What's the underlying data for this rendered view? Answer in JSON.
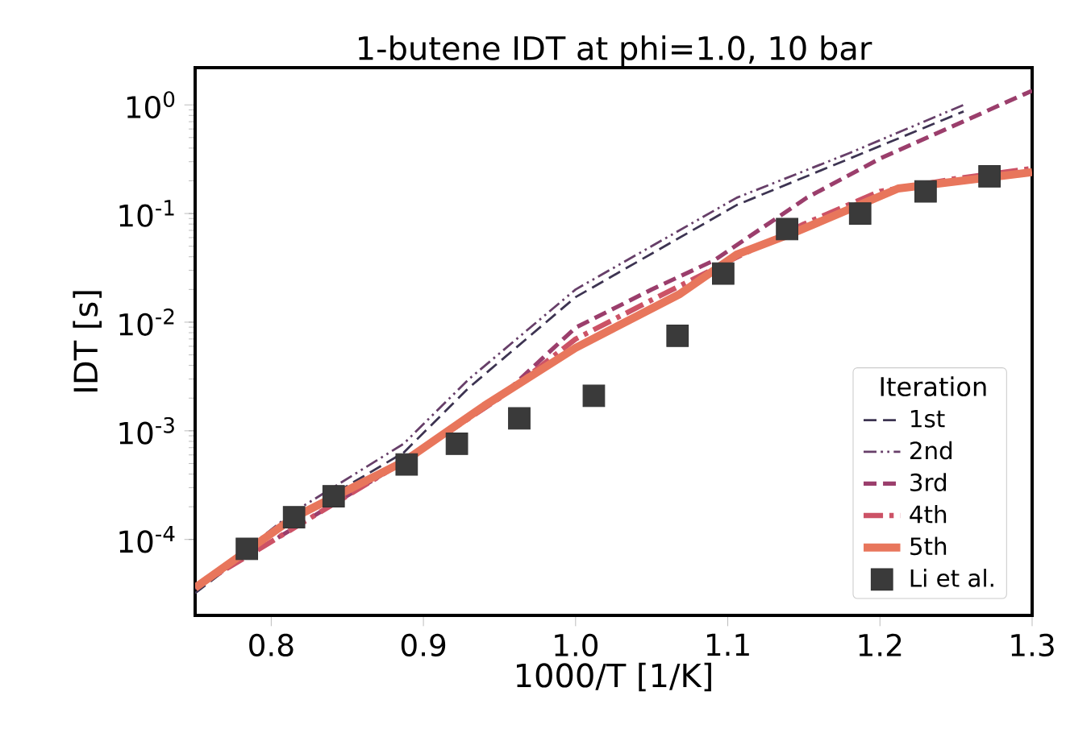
{
  "chart_data": {
    "type": "line",
    "title": "1-butene IDT at phi=1.0, 10 bar",
    "xlabel": "1000/T [1/K]",
    "ylabel": "IDT [s]",
    "legend_title": "Iteration",
    "legend": "bottom right",
    "log": "y",
    "grid": false,
    "xlim": [
      0.75,
      1.3
    ],
    "xticks": [
      0.8,
      0.9,
      {
        "value": 1.0,
        "label": "1.0"
      },
      1.1,
      1.2,
      1.3
    ],
    "ylim": [
      2e-05,
      2.2
    ],
    "yticks": [
      {
        "value": 0.0001,
        "label": "10$^{-4}$"
      },
      {
        "value": 0.001,
        "label": "10$^{-3}$"
      },
      {
        "value": 0.01,
        "label": "10$^{-2}$"
      },
      {
        "value": 0.1,
        "label": "10$^{-1}$"
      },
      {
        "value": 1,
        "label": "10$^{0}$"
      }
    ],
    "series": [
      {
        "name": "1st",
        "color": "#3d3452",
        "line_style": "dashed",
        "x": [
          0.75,
          0.815,
          0.887,
          0.93,
          1.0,
          1.106,
          1.18,
          1.255
        ],
        "values": [
          3.2e-05,
          0.00016,
          0.00063,
          0.0025,
          0.017,
          0.12,
          0.32,
          0.87
        ]
      },
      {
        "name": "2nd",
        "color": "#673f69",
        "line_style": "dashdotdotted",
        "x": [
          0.75,
          0.815,
          0.887,
          0.93,
          1.0,
          1.106,
          1.18,
          1.255
        ],
        "values": [
          3.5e-05,
          0.00018,
          0.00076,
          0.003,
          0.02,
          0.14,
          0.36,
          1.0
        ]
      },
      {
        "name": "3rd",
        "color": "#9b3e6c",
        "line_style": "dashed",
        "x": [
          0.75,
          0.887,
          0.95,
          1.0,
          1.05,
          1.091,
          1.152,
          1.2,
          1.3
        ],
        "values": [
          3.6e-05,
          0.00052,
          0.002,
          0.0089,
          0.02,
          0.037,
          0.14,
          0.32,
          1.35
        ]
      },
      {
        "name": "4th",
        "color": "#cc5266",
        "line_style": "dashdot",
        "x": [
          0.75,
          0.887,
          0.95,
          1.0,
          1.05,
          1.1,
          1.15,
          1.2,
          1.25,
          1.3
        ],
        "values": [
          3.6e-05,
          0.00052,
          0.002,
          0.007,
          0.016,
          0.036,
          0.08,
          0.16,
          0.21,
          0.26
        ]
      },
      {
        "name": "5th",
        "color": "#e8765c",
        "line_style": "solid",
        "x": [
          0.75,
          0.815,
          0.887,
          0.94,
          1.0,
          1.068,
          1.106,
          1.145,
          1.212,
          1.3
        ],
        "values": [
          3.6e-05,
          0.00016,
          0.00052,
          0.0017,
          0.0058,
          0.018,
          0.042,
          0.068,
          0.17,
          0.24
        ]
      },
      {
        "name": "Li et al.",
        "type": "scatter",
        "marker": "square",
        "color": "#3a3a3a",
        "x": [
          0.784,
          0.815,
          0.841,
          0.889,
          0.922,
          0.963,
          1.012,
          1.067,
          1.097,
          1.139,
          1.187,
          1.23,
          1.272
        ],
        "values": [
          8.2e-05,
          0.00016,
          0.00025,
          0.00049,
          0.00076,
          0.0013,
          0.0021,
          0.0075,
          0.028,
          0.072,
          0.1,
          0.16,
          0.22
        ]
      }
    ]
  }
}
